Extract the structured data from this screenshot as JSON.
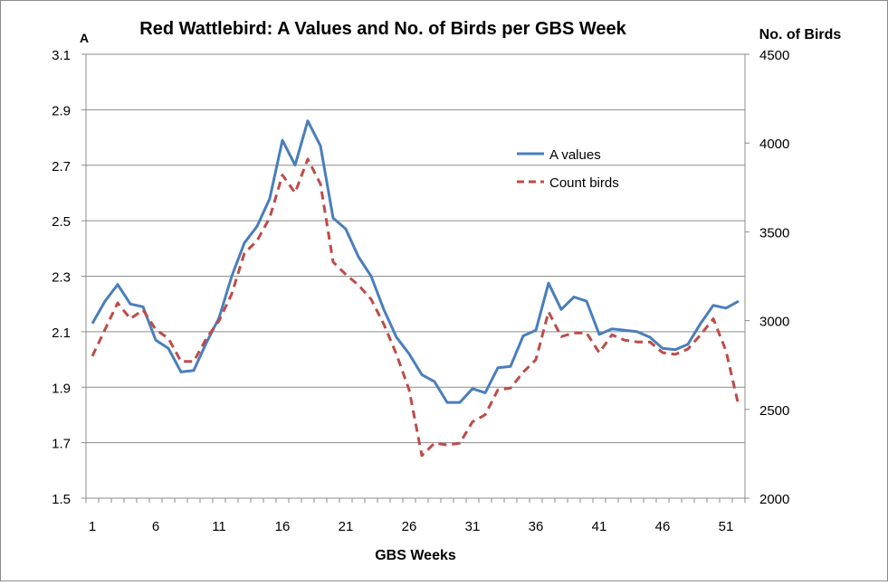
{
  "chart_data": {
    "type": "line",
    "title": "Red Wattlebird: A Values and No. of Birds per GBS Week",
    "xlabel": "GBS Weeks",
    "ylabel_left": "A",
    "ylabel_right": "No. of Birds",
    "x": [
      1,
      2,
      3,
      4,
      5,
      6,
      7,
      8,
      9,
      10,
      11,
      12,
      13,
      14,
      15,
      16,
      17,
      18,
      19,
      20,
      21,
      22,
      23,
      24,
      25,
      26,
      27,
      28,
      29,
      30,
      31,
      32,
      33,
      34,
      35,
      36,
      37,
      38,
      39,
      40,
      41,
      42,
      43,
      44,
      45,
      46,
      47,
      48,
      49,
      50,
      51,
      52
    ],
    "x_tick_labels": [
      "1",
      "6",
      "11",
      "16",
      "21",
      "26",
      "31",
      "36",
      "41",
      "46",
      "51"
    ],
    "x_tick_values": [
      1,
      6,
      11,
      16,
      21,
      26,
      31,
      36,
      41,
      46,
      51
    ],
    "y_left_ticks": [
      "1.5",
      "1.7",
      "1.9",
      "2.1",
      "2.3",
      "2.5",
      "2.7",
      "2.9",
      "3.1"
    ],
    "y_right_ticks": [
      "2000",
      "2500",
      "3000",
      "3500",
      "4000",
      "4500"
    ],
    "ylim_left": [
      1.5,
      3.1
    ],
    "ylim_right": [
      2000,
      4500
    ],
    "grid": true,
    "legend_position": "upper-right-inside",
    "series": [
      {
        "name": "A values",
        "axis": "left",
        "color": "#4a7ebb",
        "style": "solid",
        "values": [
          2.13,
          2.21,
          2.27,
          2.2,
          2.19,
          2.07,
          2.04,
          1.955,
          1.96,
          2.06,
          2.15,
          2.3,
          2.42,
          2.48,
          2.58,
          2.79,
          2.7,
          2.86,
          2.77,
          2.51,
          2.47,
          2.37,
          2.3,
          2.18,
          2.08,
          2.02,
          1.945,
          1.92,
          1.845,
          1.845,
          1.895,
          1.88,
          1.97,
          1.975,
          2.085,
          2.105,
          2.275,
          2.18,
          2.225,
          2.21,
          2.09,
          2.11,
          2.105,
          2.1,
          2.08,
          2.04,
          2.035,
          2.055,
          2.13,
          2.195,
          2.185,
          2.21
        ]
      },
      {
        "name": "Count birds",
        "axis": "right",
        "color": "#be4b48",
        "style": "dashed",
        "values": [
          2800,
          2950,
          3100,
          3010,
          3060,
          2950,
          2900,
          2770,
          2770,
          2900,
          3000,
          3150,
          3380,
          3450,
          3580,
          3820,
          3720,
          3910,
          3770,
          3330,
          3260,
          3200,
          3120,
          2980,
          2810,
          2610,
          2240,
          2310,
          2300,
          2310,
          2430,
          2470,
          2610,
          2620,
          2710,
          2780,
          3050,
          2910,
          2930,
          2930,
          2820,
          2920,
          2890,
          2880,
          2880,
          2820,
          2810,
          2840,
          2920,
          3010,
          2830,
          2520
        ]
      }
    ]
  }
}
